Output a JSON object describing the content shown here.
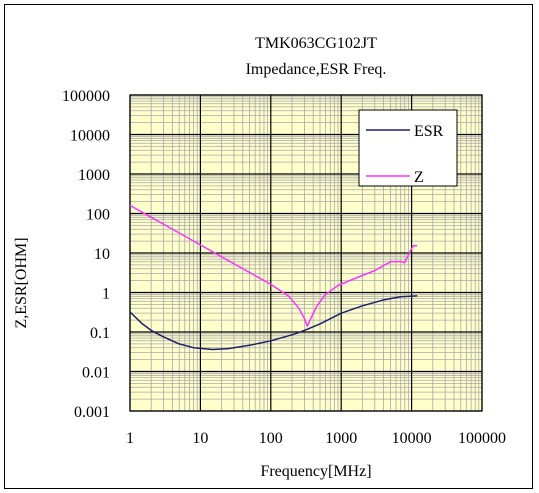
{
  "chart_data": {
    "type": "line",
    "title": "TMK063CG102JT",
    "subtitle": "Impedance,ESR Freq.",
    "xlabel": "Frequency[MHz]",
    "ylabel": "Z,ESR[OHM]",
    "xscale": "log",
    "yscale": "log",
    "xlim": [
      1,
      100000
    ],
    "ylim": [
      0.001,
      100000
    ],
    "x_ticks": [
      "1",
      "10",
      "100",
      "1000",
      "10000",
      "100000"
    ],
    "y_ticks": [
      "100000",
      "10000",
      "1000",
      "100",
      "10",
      "1",
      "0.1",
      "0.01",
      "0.001"
    ],
    "grid": true,
    "legend_position": "top-right",
    "series": [
      {
        "name": "ESR",
        "color": "#1b1f6b",
        "points": [
          [
            1,
            0.32
          ],
          [
            1.5,
            0.16
          ],
          [
            2,
            0.11
          ],
          [
            3,
            0.075
          ],
          [
            5,
            0.05
          ],
          [
            8,
            0.04
          ],
          [
            15,
            0.036
          ],
          [
            25,
            0.038
          ],
          [
            50,
            0.046
          ],
          [
            100,
            0.06
          ],
          [
            200,
            0.085
          ],
          [
            300,
            0.11
          ],
          [
            500,
            0.16
          ],
          [
            1000,
            0.3
          ],
          [
            2000,
            0.46
          ],
          [
            4000,
            0.65
          ],
          [
            7000,
            0.78
          ],
          [
            12000,
            0.82
          ]
        ]
      },
      {
        "name": "Z",
        "color": "#ff33ff",
        "points": [
          [
            1,
            160
          ],
          [
            2,
            80
          ],
          [
            5,
            32
          ],
          [
            10,
            16
          ],
          [
            20,
            8
          ],
          [
            50,
            3.2
          ],
          [
            100,
            1.6
          ],
          [
            180,
            0.8
          ],
          [
            250,
            0.4
          ],
          [
            300,
            0.22
          ],
          [
            330,
            0.14
          ],
          [
            370,
            0.22
          ],
          [
            450,
            0.45
          ],
          [
            600,
            0.9
          ],
          [
            900,
            1.5
          ],
          [
            1500,
            2.2
          ],
          [
            3000,
            3.6
          ],
          [
            5000,
            6
          ],
          [
            7000,
            6.1
          ],
          [
            8000,
            5.7
          ],
          [
            9000,
            9
          ],
          [
            10500,
            15
          ],
          [
            12000,
            15.5
          ]
        ]
      }
    ]
  },
  "colors": {
    "plot_bg": "#ffffcc",
    "minor_grid": "#a8a8a8",
    "major_grid": "#000000"
  }
}
